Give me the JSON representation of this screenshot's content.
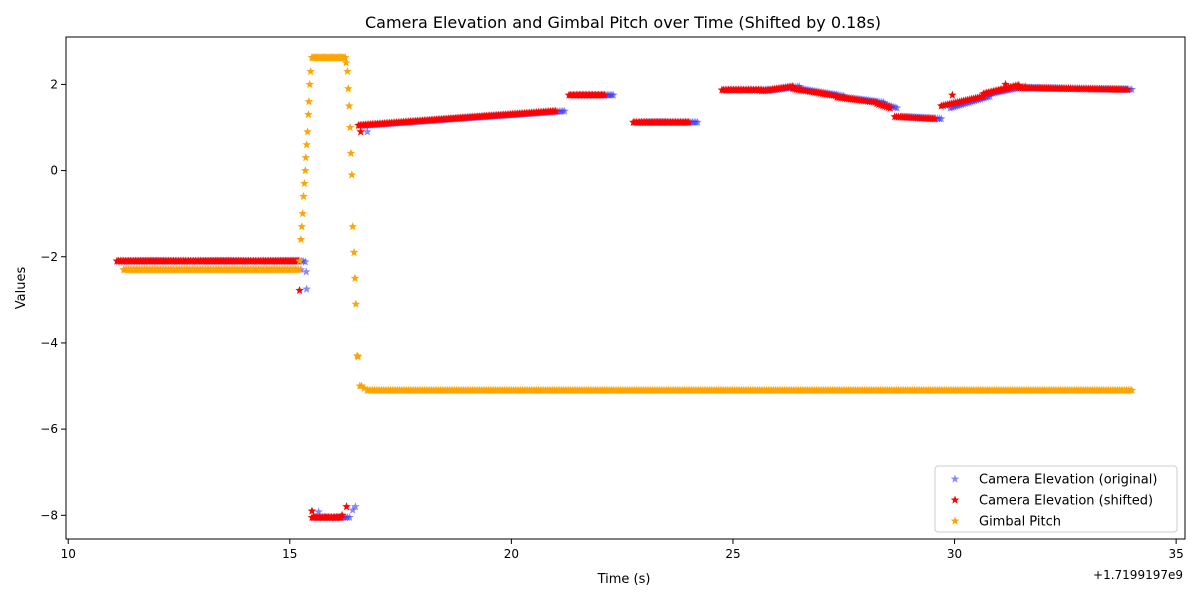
{
  "chart_data": {
    "type": "scatter",
    "title": "Camera Elevation and Gimbal Pitch over Time (Shifted by 0.18s)",
    "xlabel": "Time (s)",
    "ylabel": "Values",
    "x_offset_label": "+1.7199197e9",
    "xlim": [
      9.95,
      35.2
    ],
    "ylim": [
      -8.55,
      3.1
    ],
    "x_ticks": [
      10,
      15,
      20,
      25,
      30,
      35
    ],
    "y_ticks": [
      -8,
      -6,
      -4,
      -2,
      0,
      2
    ],
    "grid": false,
    "legend_position": "lower-right",
    "marker": "star",
    "series": [
      {
        "name": "Camera Elevation (original)",
        "color": "#3b3bff",
        "opacity": 0.6,
        "segments": [
          {
            "x": [
              11.1,
              15.3
            ],
            "y": [
              -2.1,
              -2.1
            ],
            "n": 110
          },
          {
            "x": [
              16.7,
              21.2
            ],
            "y": [
              1.05,
              1.38
            ],
            "n": 115
          },
          {
            "x": [
              21.5,
              22.3
            ],
            "y": [
              1.75,
              1.75
            ],
            "n": 25
          },
          {
            "x": [
              22.9,
              24.2
            ],
            "y": [
              1.12,
              1.12
            ],
            "n": 35
          },
          {
            "x": [
              24.9,
              25.8
            ],
            "y": [
              1.87,
              1.87
            ],
            "n": 25
          },
          {
            "x": [
              25.8,
              26.5
            ],
            "y": [
              1.85,
              1.95
            ],
            "n": 18
          },
          {
            "x": [
              26.5,
              27.5
            ],
            "y": [
              1.9,
              1.73
            ],
            "n": 25
          },
          {
            "x": [
              27.5,
              28.4
            ],
            "y": [
              1.7,
              1.58
            ],
            "n": 22
          },
          {
            "x": [
              28.4,
              28.7
            ],
            "y": [
              1.55,
              1.45
            ],
            "n": 8
          },
          {
            "x": [
              28.8,
              29.7
            ],
            "y": [
              1.25,
              1.2
            ],
            "n": 22
          },
          {
            "x": [
              29.9,
              30.8
            ],
            "y": [
              1.45,
              1.72
            ],
            "n": 22
          },
          {
            "x": [
              30.8,
              31.6
            ],
            "y": [
              1.78,
              1.95
            ],
            "n": 22
          },
          {
            "x": [
              31.6,
              34.0
            ],
            "y": [
              1.92,
              1.88
            ],
            "n": 60
          },
          {
            "x": [
              15.55,
              16.3
            ],
            "y": [
              -8.05,
              -8.05
            ],
            "n": 20
          }
        ],
        "points": [
          [
            15.25,
            -2.3
          ],
          [
            15.37,
            -2.35
          ],
          [
            15.38,
            -2.75
          ],
          [
            15.35,
            -2.12
          ],
          [
            15.65,
            -7.92
          ],
          [
            16.35,
            -8.05
          ],
          [
            16.42,
            -7.88
          ],
          [
            16.48,
            -7.8
          ],
          [
            16.75,
            0.9
          ]
        ]
      },
      {
        "name": "Camera Elevation (shifted)",
        "color": "#ff0000",
        "opacity": 1,
        "segments": [
          {
            "x": [
              11.1,
              15.2
            ],
            "y": [
              -2.1,
              -2.1
            ],
            "n": 110
          },
          {
            "x": [
              16.55,
              21.0
            ],
            "y": [
              1.05,
              1.38
            ],
            "n": 115
          },
          {
            "x": [
              21.3,
              22.1
            ],
            "y": [
              1.75,
              1.75
            ],
            "n": 25
          },
          {
            "x": [
              22.75,
              24.0
            ],
            "y": [
              1.12,
              1.12
            ],
            "n": 35
          },
          {
            "x": [
              24.75,
              25.65
            ],
            "y": [
              1.87,
              1.87
            ],
            "n": 25
          },
          {
            "x": [
              25.65,
              26.35
            ],
            "y": [
              1.85,
              1.95
            ],
            "n": 18
          },
          {
            "x": [
              26.35,
              27.35
            ],
            "y": [
              1.9,
              1.73
            ],
            "n": 25
          },
          {
            "x": [
              27.35,
              28.25
            ],
            "y": [
              1.7,
              1.58
            ],
            "n": 22
          },
          {
            "x": [
              28.25,
              28.55
            ],
            "y": [
              1.55,
              1.45
            ],
            "n": 8
          },
          {
            "x": [
              28.65,
              29.55
            ],
            "y": [
              1.25,
              1.2
            ],
            "n": 22
          },
          {
            "x": [
              29.7,
              30.65
            ],
            "y": [
              1.5,
              1.72
            ],
            "n": 22
          },
          {
            "x": [
              30.65,
              31.45
            ],
            "y": [
              1.78,
              1.98
            ],
            "n": 22
          },
          {
            "x": [
              31.45,
              33.9
            ],
            "y": [
              1.92,
              1.88
            ],
            "n": 60
          },
          {
            "x": [
              15.5,
              16.15
            ],
            "y": [
              -8.05,
              -8.05
            ],
            "n": 20
          }
        ],
        "points": [
          [
            15.22,
            -2.78
          ],
          [
            15.5,
            -7.9
          ],
          [
            16.28,
            -7.8
          ],
          [
            16.18,
            -8.0
          ],
          [
            16.6,
            0.9
          ],
          [
            29.95,
            1.75
          ],
          [
            31.15,
            2.0
          ]
        ]
      },
      {
        "name": "Gimbal Pitch",
        "color": "#ffa500",
        "opacity": 1,
        "segments": [
          {
            "x": [
              11.25,
              15.2
            ],
            "y": [
              -2.3,
              -2.3
            ],
            "n": 110
          },
          {
            "x": [
              15.5,
              16.25
            ],
            "y": [
              2.62,
              2.62
            ],
            "n": 30
          },
          {
            "x": [
              16.75,
              34.0
            ],
            "y": [
              -5.1,
              -5.1
            ],
            "n": 430
          }
        ],
        "points": [
          [
            15.22,
            -2.1
          ],
          [
            15.25,
            -1.6
          ],
          [
            15.27,
            -1.3
          ],
          [
            15.29,
            -1.0
          ],
          [
            15.31,
            -0.6
          ],
          [
            15.33,
            -0.3
          ],
          [
            15.35,
            0.0
          ],
          [
            15.36,
            0.3
          ],
          [
            15.38,
            0.6
          ],
          [
            15.4,
            0.9
          ],
          [
            15.42,
            1.3
          ],
          [
            15.43,
            1.6
          ],
          [
            15.45,
            2.0
          ],
          [
            15.47,
            2.3
          ],
          [
            16.27,
            2.5
          ],
          [
            16.3,
            2.3
          ],
          [
            16.32,
            1.9
          ],
          [
            16.34,
            1.5
          ],
          [
            16.36,
            1.0
          ],
          [
            16.38,
            0.4
          ],
          [
            16.4,
            -0.1
          ],
          [
            16.42,
            -1.3
          ],
          [
            16.45,
            -1.9
          ],
          [
            16.47,
            -2.5
          ],
          [
            16.49,
            -3.1
          ],
          [
            16.52,
            -4.3
          ],
          [
            16.54,
            -4.32
          ],
          [
            16.58,
            -5.0
          ],
          [
            16.62,
            -5.0
          ],
          [
            16.68,
            -5.05
          ]
        ]
      }
    ]
  }
}
